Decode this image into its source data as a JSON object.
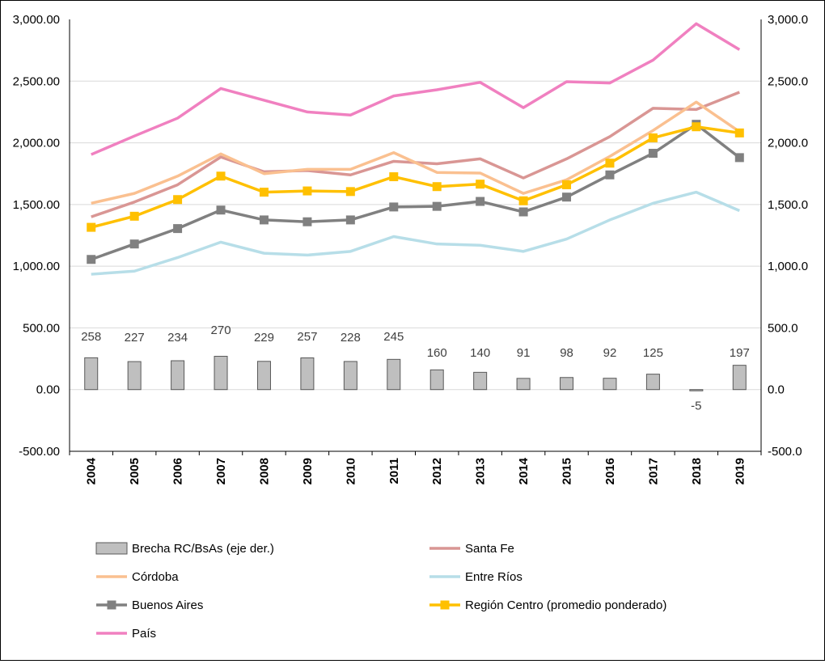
{
  "chart_data": {
    "type": "line",
    "x": [
      "2004",
      "2005",
      "2006",
      "2007",
      "2008",
      "2009",
      "2010",
      "2011",
      "2012",
      "2013",
      "2014",
      "2015",
      "2016",
      "2017",
      "2018",
      "2019"
    ],
    "y_left_ticks": [
      "3,000.00",
      "2,500.00",
      "2,000.00",
      "1,500.00",
      "1,000.00",
      "500.00",
      "0.00",
      "-500.00"
    ],
    "y_right_ticks": [
      "3,000.0",
      "2,500.0",
      "2,000.0",
      "1,500.0",
      "1,000.0",
      "500.0",
      "0.0",
      "-500.0"
    ],
    "ylim_left": [
      -500,
      3000
    ],
    "ylim_right": [
      -500,
      3000
    ],
    "grid": true,
    "legend_position": "bottom",
    "series": [
      {
        "name": "Brecha RC/BsAs (eje der.)",
        "type": "bar",
        "axis": "right",
        "color": "#bfbfbf",
        "values": [
          258,
          227,
          234,
          270,
          229,
          257,
          228,
          245,
          160,
          140,
          91,
          98,
          92,
          125,
          -5,
          197
        ],
        "labels": [
          "258",
          "227",
          "234",
          "270",
          "229",
          "257",
          "228",
          "245",
          "160",
          "140",
          "91",
          "98",
          "92",
          "125",
          "-5",
          "197"
        ]
      },
      {
        "name": "Santa Fe",
        "type": "line",
        "color": "#d99694",
        "values": [
          1400,
          1520,
          1660,
          1885,
          1765,
          1775,
          1740,
          1850,
          1830,
          1870,
          1715,
          1870,
          2050,
          2280,
          2270,
          2410
        ]
      },
      {
        "name": "Córdoba",
        "type": "line",
        "color": "#fac090",
        "values": [
          1510,
          1590,
          1730,
          1910,
          1750,
          1785,
          1785,
          1920,
          1760,
          1755,
          1590,
          1700,
          1890,
          2100,
          2330,
          2090
        ]
      },
      {
        "name": "Entre Ríos",
        "type": "line",
        "color": "#b7dee8",
        "values": [
          935,
          960,
          1070,
          1195,
          1105,
          1090,
          1120,
          1240,
          1180,
          1170,
          1120,
          1220,
          1375,
          1510,
          1600,
          1450
        ]
      },
      {
        "name": "Buenos Aires",
        "type": "line-marker",
        "color": "#808080",
        "values": [
          1055,
          1180,
          1305,
          1455,
          1375,
          1360,
          1375,
          1480,
          1485,
          1525,
          1440,
          1560,
          1740,
          1915,
          2150,
          1880
        ]
      },
      {
        "name": "Región Centro (promedio ponderado)",
        "type": "line-marker",
        "color": "#ffc000",
        "values": [
          1315,
          1405,
          1540,
          1730,
          1600,
          1610,
          1605,
          1725,
          1645,
          1665,
          1530,
          1660,
          1835,
          2040,
          2130,
          2080
        ]
      },
      {
        "name": "País",
        "type": "line",
        "color": "#f080c0",
        "values": [
          1905,
          2055,
          2200,
          2440,
          2345,
          2250,
          2225,
          2380,
          2430,
          2490,
          2285,
          2495,
          2485,
          2670,
          2965,
          2755
        ]
      }
    ]
  }
}
